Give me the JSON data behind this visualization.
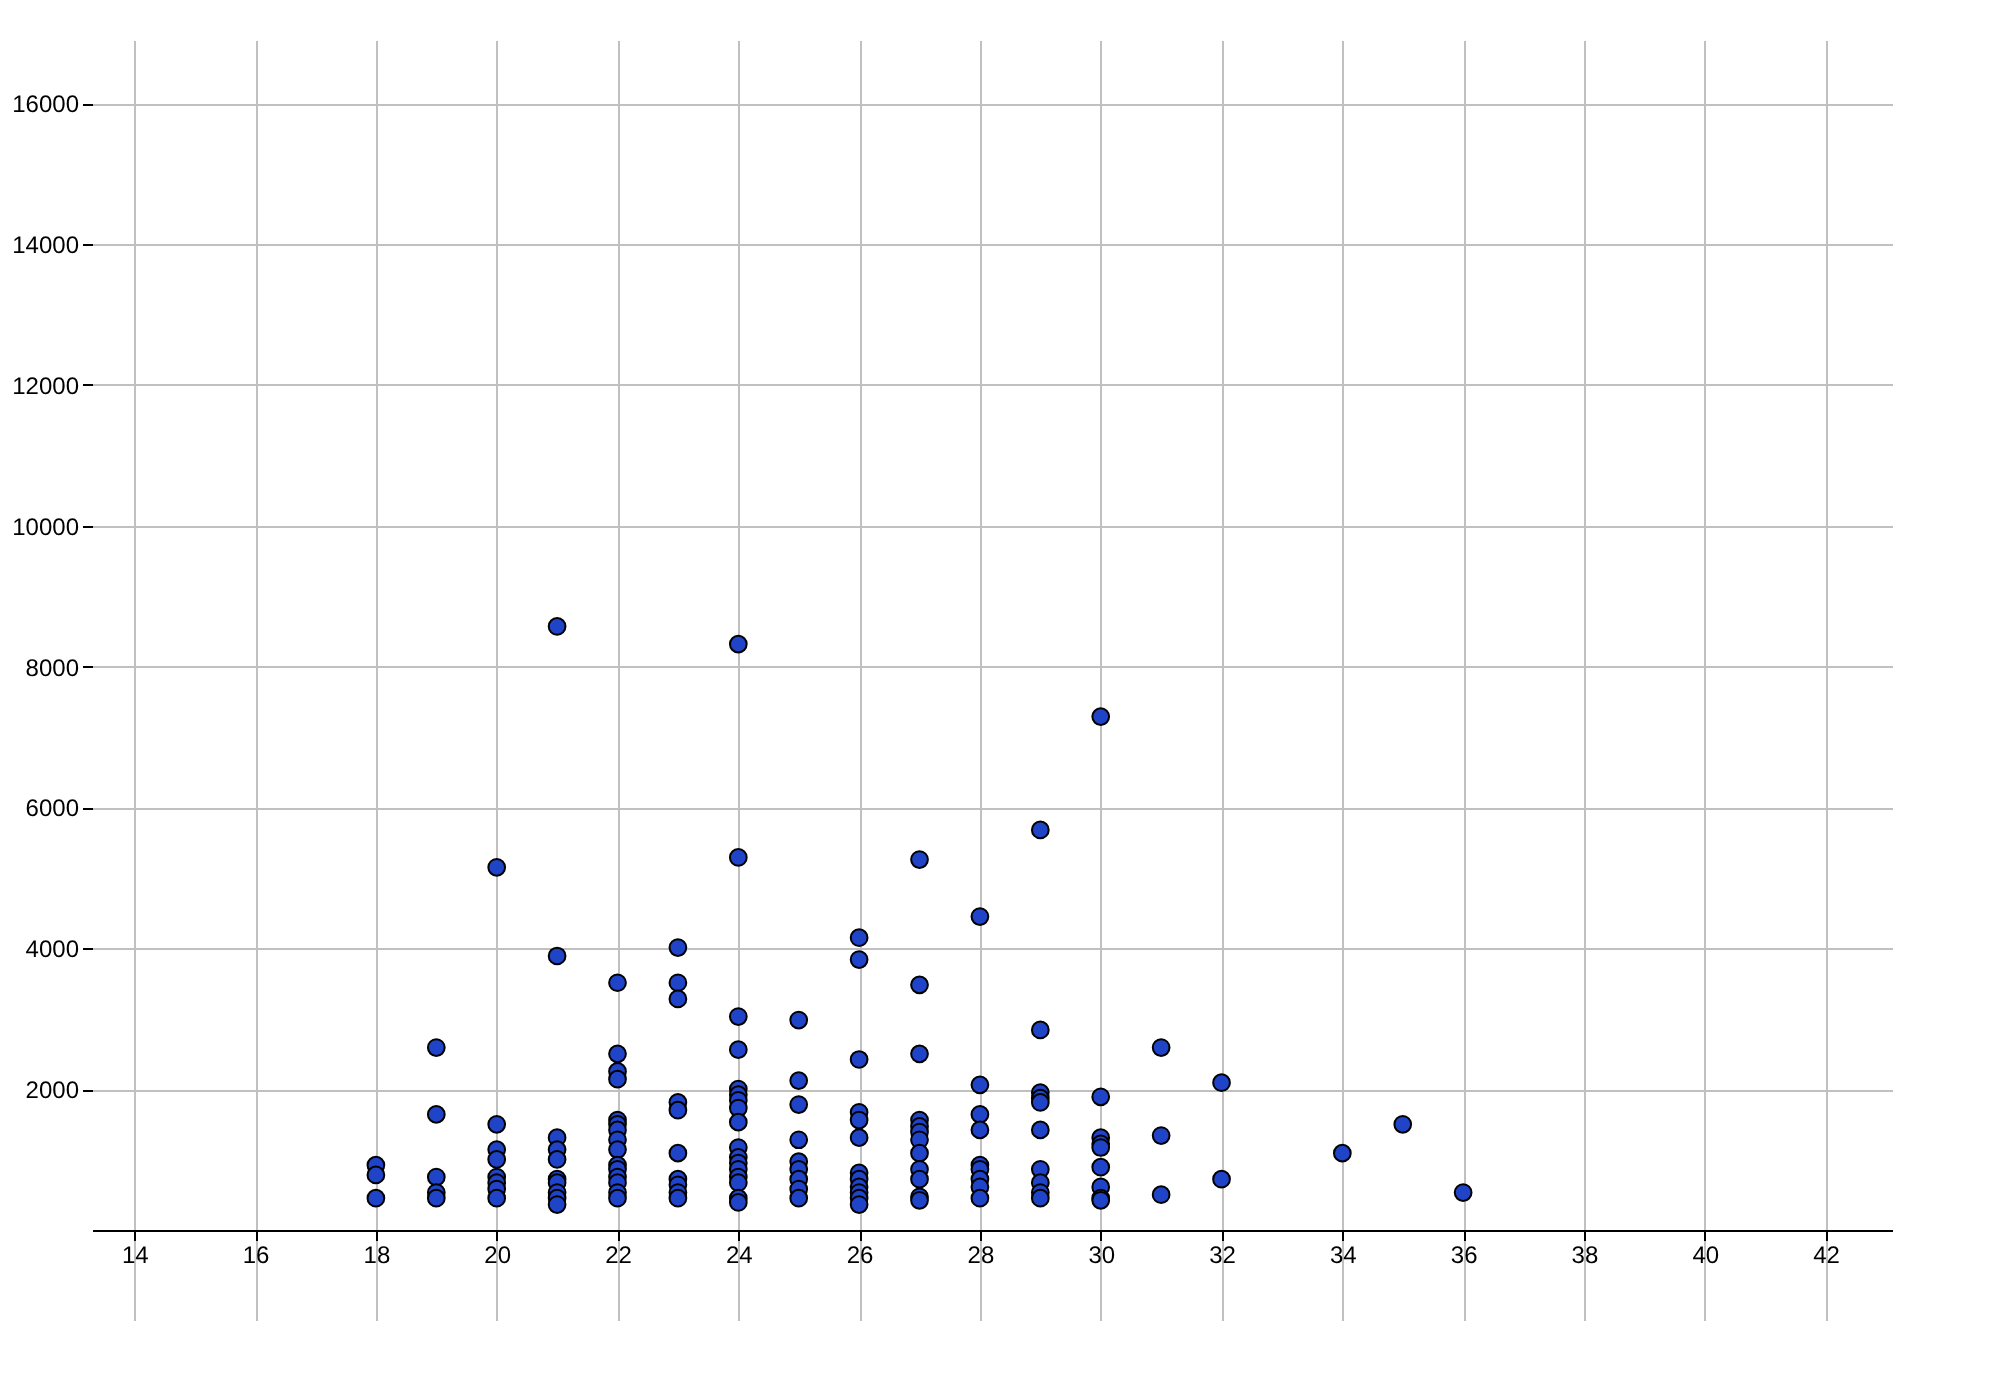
{
  "chart_data": {
    "type": "scatter",
    "marker": "circle",
    "grid": true,
    "xlim": [
      13.3,
      43.1
    ],
    "ylim": [
      -1280,
      16900
    ],
    "xticks": [
      14,
      16,
      18,
      20,
      22,
      24,
      26,
      28,
      30,
      32,
      34,
      36,
      38,
      40,
      42
    ],
    "yticks": [
      2000,
      4000,
      6000,
      8000,
      10000,
      12000,
      14000,
      16000
    ],
    "series": [
      {
        "color": "#1f44c8",
        "x": [
          18,
          18,
          18,
          19,
          19,
          19,
          19,
          19,
          20,
          20,
          20,
          20,
          20,
          20,
          20,
          20,
          21,
          21,
          21,
          21,
          21,
          21,
          21,
          21,
          21,
          21,
          22,
          22,
          22,
          22,
          22,
          22,
          22,
          22,
          22,
          22,
          22,
          22,
          22,
          22,
          22,
          23,
          23,
          23,
          23,
          23,
          23,
          23,
          23,
          23,
          23,
          24,
          24,
          24,
          24,
          24,
          24,
          24,
          24,
          24,
          24,
          24,
          24,
          24,
          24,
          24,
          24,
          24,
          25,
          25,
          25,
          25,
          25,
          25,
          25,
          25,
          25,
          26,
          26,
          26,
          26,
          26,
          26,
          26,
          26,
          26,
          26,
          26,
          26,
          27,
          27,
          27,
          27,
          27,
          27,
          27,
          27,
          27,
          27,
          27,
          27,
          28,
          28,
          28,
          28,
          28,
          28,
          28,
          28,
          28,
          29,
          29,
          29,
          29,
          29,
          29,
          29,
          29,
          29,
          29,
          30,
          30,
          30,
          30,
          30,
          30,
          30,
          30,
          30,
          31,
          31,
          31,
          32,
          32,
          34,
          35,
          36
        ],
        "values": [
          920,
          780,
          450,
          2590,
          1640,
          750,
          530,
          450,
          5150,
          1500,
          1140,
          1000,
          750,
          670,
          580,
          450,
          8570,
          3890,
          1310,
          1140,
          1000,
          720,
          670,
          530,
          450,
          360,
          3510,
          2500,
          2250,
          2140,
          1560,
          1500,
          1420,
          1280,
          1140,
          920,
          860,
          750,
          670,
          530,
          450,
          4010,
          3510,
          3280,
          1810,
          1700,
          1090,
          720,
          640,
          530,
          450,
          8320,
          5290,
          3030,
          2560,
          2000,
          1920,
          1840,
          1730,
          1530,
          1170,
          1030,
          950,
          860,
          750,
          670,
          450,
          390,
          2980,
          2120,
          1780,
          1280,
          970,
          860,
          720,
          580,
          450,
          4150,
          3840,
          2420,
          1670,
          1560,
          1310,
          810,
          720,
          610,
          530,
          450,
          360,
          5260,
          3480,
          2500,
          1560,
          1470,
          1390,
          1280,
          1090,
          860,
          720,
          470,
          420,
          4450,
          2060,
          1640,
          1420,
          920,
          860,
          720,
          610,
          450,
          5680,
          2840,
          1950,
          1870,
          1810,
          1420,
          860,
          670,
          530,
          450,
          7290,
          1890,
          1310,
          1220,
          1170,
          890,
          610,
          450,
          420,
          2590,
          1340,
          500,
          2090,
          720,
          1090,
          1500,
          530
        ]
      }
    ]
  }
}
